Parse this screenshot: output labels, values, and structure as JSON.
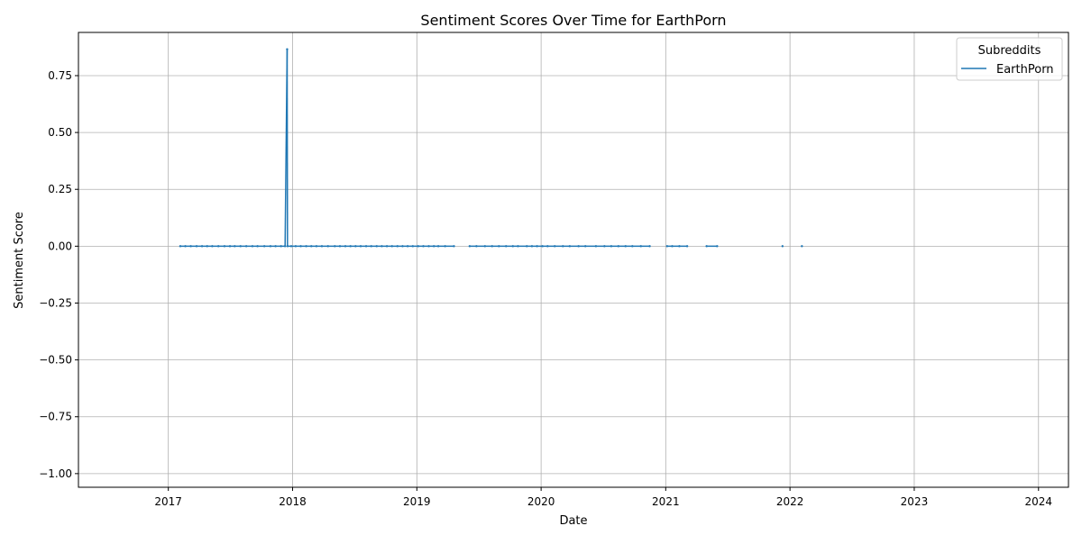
{
  "chart_data": {
    "type": "line",
    "title": "Sentiment Scores Over Time for EarthPorn",
    "xlabel": "Date",
    "ylabel": "Sentiment Score",
    "x_ticks": [
      "2017",
      "2018",
      "2019",
      "2020",
      "2021",
      "2022",
      "2023",
      "2024"
    ],
    "y_ticks": [
      "0.75",
      "0.50",
      "0.25",
      "0.00",
      "−0.25",
      "−0.50",
      "−0.75",
      "−1.00"
    ],
    "ylim": [
      -1.06,
      0.94
    ],
    "xlim": [
      "2016-04-12",
      "2024-03-29"
    ],
    "grid": true,
    "legend": {
      "title": "Subreddits",
      "placement": "top-right"
    },
    "series": [
      {
        "name": "EarthPorn",
        "color": "#1f77b4",
        "points": [
          [
            "2017-02-05",
            0
          ],
          [
            "2017-02-20",
            0
          ],
          [
            "2017-03-08",
            0
          ],
          [
            "2017-03-25",
            0
          ],
          [
            "2017-04-10",
            0
          ],
          [
            "2017-04-25",
            0
          ],
          [
            "2017-05-10",
            0
          ],
          [
            "2017-05-28",
            0
          ],
          [
            "2017-06-15",
            0
          ],
          [
            "2017-07-01",
            0
          ],
          [
            "2017-07-15",
            0
          ],
          [
            "2017-08-01",
            0
          ],
          [
            "2017-08-18",
            0
          ],
          [
            "2017-09-05",
            0
          ],
          [
            "2017-09-20",
            0
          ],
          [
            "2017-10-10",
            0
          ],
          [
            "2017-10-28",
            0
          ],
          [
            "2017-11-12",
            0
          ],
          [
            "2017-11-28",
            0
          ],
          [
            "2017-12-10",
            0
          ],
          [
            "2017-12-16",
            0.866
          ],
          [
            "2017-12-17",
            0
          ],
          [
            "2017-12-28",
            0
          ],
          [
            "2018-01-10",
            0
          ],
          [
            "2018-01-25",
            0
          ],
          [
            "2018-02-10",
            0
          ],
          [
            "2018-02-25",
            0
          ],
          [
            "2018-03-12",
            0
          ],
          [
            "2018-03-28",
            0
          ],
          [
            "2018-04-15",
            0
          ],
          [
            "2018-05-05",
            0
          ],
          [
            "2018-05-20",
            0
          ],
          [
            "2018-06-05",
            0
          ],
          [
            "2018-06-20",
            0
          ],
          [
            "2018-07-05",
            0
          ],
          [
            "2018-07-20",
            0
          ],
          [
            "2018-08-05",
            0
          ],
          [
            "2018-08-20",
            0
          ],
          [
            "2018-09-05",
            0
          ],
          [
            "2018-09-20",
            0
          ],
          [
            "2018-10-05",
            0
          ],
          [
            "2018-10-20",
            0
          ],
          [
            "2018-11-05",
            0
          ],
          [
            "2018-11-20",
            0
          ],
          [
            "2018-12-05",
            0
          ],
          [
            "2018-12-20",
            0
          ],
          [
            "2019-01-05",
            0
          ],
          [
            "2019-01-20",
            0
          ],
          [
            "2019-02-05",
            0
          ],
          [
            "2019-02-20",
            0
          ],
          [
            "2019-03-05",
            0
          ],
          [
            "2019-03-25",
            0
          ],
          [
            "2019-04-20",
            0
          ],
          [
            "2019-06-05",
            0
          ],
          [
            "2019-06-25",
            0
          ],
          [
            "2019-07-20",
            0
          ],
          [
            "2019-08-10",
            0
          ],
          [
            "2019-08-30",
            0
          ],
          [
            "2019-09-20",
            0
          ],
          [
            "2019-10-10",
            0
          ],
          [
            "2019-10-25",
            0
          ],
          [
            "2019-11-20",
            0
          ],
          [
            "2019-12-05",
            0
          ],
          [
            "2019-12-20",
            0
          ],
          [
            "2020-01-05",
            0
          ],
          [
            "2020-01-20",
            0
          ],
          [
            "2020-02-10",
            0
          ],
          [
            "2020-03-05",
            0
          ],
          [
            "2020-03-25",
            0
          ],
          [
            "2020-04-20",
            0
          ],
          [
            "2020-05-10",
            0
          ],
          [
            "2020-06-10",
            0
          ],
          [
            "2020-07-05",
            0
          ],
          [
            "2020-07-25",
            0
          ],
          [
            "2020-08-15",
            0
          ],
          [
            "2020-09-05",
            0
          ],
          [
            "2020-09-25",
            0
          ],
          [
            "2020-10-20",
            0
          ],
          [
            "2020-11-15",
            0
          ],
          [
            "2021-01-05",
            0
          ],
          [
            "2021-01-20",
            0
          ],
          [
            "2021-02-10",
            0
          ],
          [
            "2021-03-05",
            0
          ],
          [
            "2021-05-01",
            0
          ],
          [
            "2021-06-01",
            0
          ],
          [
            "2021-12-10",
            0
          ],
          [
            "2022-02-05",
            0
          ]
        ]
      }
    ]
  }
}
